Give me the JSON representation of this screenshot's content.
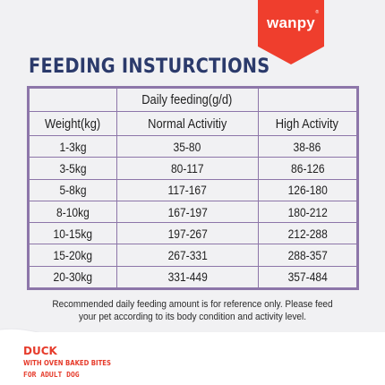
{
  "brand": {
    "name": "wanpy",
    "reg_mark": "®",
    "color": "#ef3e2d"
  },
  "title": "FEEDING INSTURCTIONS",
  "table": {
    "group_header": "Daily feeding(g/d)",
    "columns": [
      "Weight(kg)",
      "Normal Activitiy",
      "High Activity"
    ],
    "rows": [
      [
        "1-3kg",
        "35-80",
        "38-86"
      ],
      [
        "3-5kg",
        "80-117",
        "86-126"
      ],
      [
        "5-8kg",
        "117-167",
        "126-180"
      ],
      [
        "8-10kg",
        "167-197",
        "180-212"
      ],
      [
        "10-15kg",
        "197-267",
        "212-288"
      ],
      [
        "15-20kg",
        "267-331",
        "288-357"
      ],
      [
        "20-30kg",
        "331-449",
        "357-484"
      ]
    ],
    "border_color": "#8d76a9"
  },
  "note": {
    "line1": "Recommended daily feeding amount is for reference only. Please feed",
    "line2": "your pet according to its body condition and activity level."
  },
  "product": {
    "name": "DUCK",
    "line1": "WITH OVEN BAKED BITES",
    "line2": "FOR ADULT DOG"
  }
}
